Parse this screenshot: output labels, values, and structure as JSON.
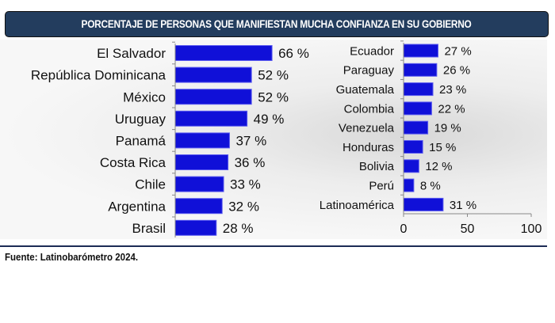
{
  "title": "PORCENTAJE DE PERSONAS QUE MANIFIESTAN MUCHA CONFIANZA EN SU GOBIERNO",
  "source": "Fuente: Latinobarómetro 2024.",
  "colors": {
    "bar": "#1010d8",
    "header": "#233d5e"
  },
  "chart_data": [
    {
      "type": "bar",
      "orientation": "horizontal",
      "categories": [
        "El Salvador",
        "República Dominicana",
        "México",
        "Uruguay",
        "Panamá",
        "Costa Rica",
        "Chile",
        "Argentina",
        "Brasil"
      ],
      "values": [
        66,
        52,
        52,
        49,
        37,
        36,
        33,
        32,
        28
      ],
      "unit": "%",
      "xlim": [
        0,
        100
      ]
    },
    {
      "type": "bar",
      "orientation": "horizontal",
      "categories": [
        "Ecuador",
        "Paraguay",
        "Guatemala",
        "Colombia",
        "Venezuela",
        "Honduras",
        "Bolivia",
        "Perú",
        "Latinoamérica"
      ],
      "values": [
        27,
        26,
        23,
        22,
        19,
        15,
        12,
        8,
        31
      ],
      "unit": "%",
      "xlim": [
        0,
        100
      ],
      "xticks": [
        0,
        50,
        100
      ]
    }
  ]
}
